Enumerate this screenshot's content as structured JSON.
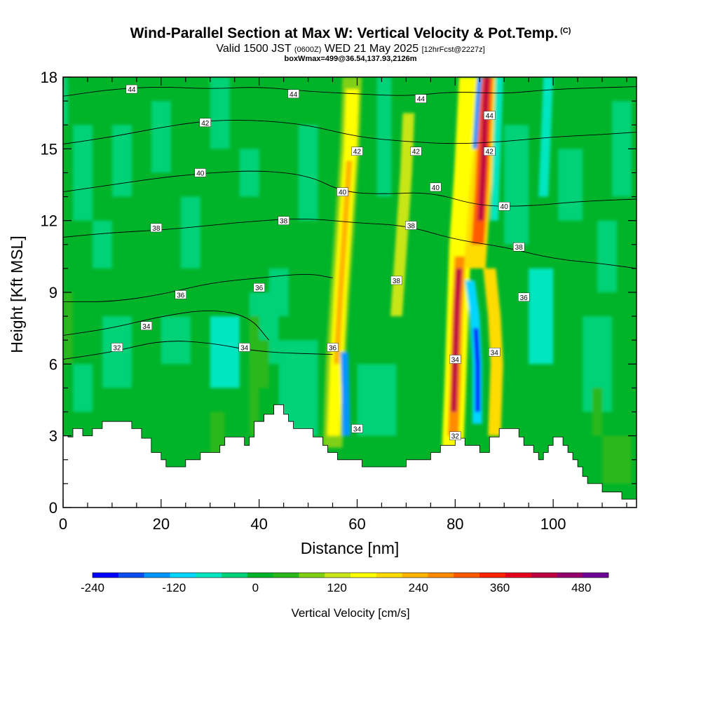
{
  "header": {
    "title": "Wind-Parallel Section at Max W: Vertical Velocity & Pot.Temp.",
    "copyright": "(C)",
    "valid_prefix": "Valid 1500 JST",
    "valid_utc": "(0600Z)",
    "valid_date": "WED 21 May 2025",
    "forecast": "[12hrFcst@2227z]",
    "box_info": "boxWmax=499@36.54,137.93,2126m"
  },
  "chart_data": {
    "type": "heatmap",
    "xlabel": "Distance [nm]",
    "ylabel": "Height [Kft MSL]",
    "xlim": [
      0,
      117
    ],
    "ylim": [
      0,
      18
    ],
    "x_ticks": [
      0,
      20,
      40,
      60,
      80,
      100
    ],
    "y_ticks": [
      0,
      3,
      6,
      9,
      12,
      15,
      18
    ],
    "colorbar": {
      "label": "Vertical Velocity [cm/s]",
      "ticks": [
        -240,
        -120,
        0,
        120,
        240,
        360,
        480
      ],
      "bins": [
        -240,
        -200,
        -160,
        -120,
        -80,
        -40,
        0,
        40,
        80,
        120,
        160,
        200,
        240,
        280,
        320,
        360,
        400,
        440,
        480,
        520
      ],
      "colors": [
        "#0000ff",
        "#0a4ef2",
        "#0096ff",
        "#00d6ff",
        "#00e6c0",
        "#00d277",
        "#00b42a",
        "#2ab81c",
        "#7fd014",
        "#c8e619",
        "#ffff00",
        "#ffdc00",
        "#ffb400",
        "#ff8c00",
        "#ff5a00",
        "#ff2300",
        "#e6001e",
        "#be0041",
        "#96006e",
        "#6e0096"
      ]
    },
    "terrain": [
      [
        0,
        3
      ],
      [
        1,
        3
      ],
      [
        1,
        2.95
      ],
      [
        2,
        2.95
      ],
      [
        2,
        3.3
      ],
      [
        4,
        3.3
      ],
      [
        4,
        3
      ],
      [
        6,
        3
      ],
      [
        6,
        3.3
      ],
      [
        8,
        3.3
      ],
      [
        8,
        3.6
      ],
      [
        11,
        3.6
      ],
      [
        11,
        3.6
      ],
      [
        14,
        3.6
      ],
      [
        14,
        3.3
      ],
      [
        16,
        3.3
      ],
      [
        16,
        2.9
      ],
      [
        18,
        2.9
      ],
      [
        18,
        2.3
      ],
      [
        20,
        2.3
      ],
      [
        20,
        2
      ],
      [
        21,
        2
      ],
      [
        21,
        1.7
      ],
      [
        25,
        1.7
      ],
      [
        25,
        2
      ],
      [
        28,
        2
      ],
      [
        28,
        2.3
      ],
      [
        32,
        2.3
      ],
      [
        32,
        2.6
      ],
      [
        33,
        2.6
      ],
      [
        33,
        2.95
      ],
      [
        37,
        2.95
      ],
      [
        37,
        2.6
      ],
      [
        38,
        2.6
      ],
      [
        38,
        2.95
      ],
      [
        39,
        2.95
      ],
      [
        39,
        3.6
      ],
      [
        41,
        3.6
      ],
      [
        41,
        3.9
      ],
      [
        43,
        3.9
      ],
      [
        43,
        4.3
      ],
      [
        45,
        4.3
      ],
      [
        45,
        3.9
      ],
      [
        46,
        3.9
      ],
      [
        46,
        3.6
      ],
      [
        47,
        3.6
      ],
      [
        47,
        3.3
      ],
      [
        51,
        3.3
      ],
      [
        51,
        2.95
      ],
      [
        53,
        2.95
      ],
      [
        53,
        2.6
      ],
      [
        54,
        2.6
      ],
      [
        54,
        2.3
      ],
      [
        56,
        2.3
      ],
      [
        56,
        2
      ],
      [
        61,
        2
      ],
      [
        61,
        1.7
      ],
      [
        70,
        1.7
      ],
      [
        70,
        2
      ],
      [
        75,
        2
      ],
      [
        75,
        2.3
      ],
      [
        77,
        2.3
      ],
      [
        77,
        2.6
      ],
      [
        80,
        2.6
      ],
      [
        80,
        2.9
      ],
      [
        82,
        2.9
      ],
      [
        82,
        2.6
      ],
      [
        85,
        2.6
      ],
      [
        85,
        2.3
      ],
      [
        87,
        2.3
      ],
      [
        87,
        2.95
      ],
      [
        89,
        2.95
      ],
      [
        89,
        3.3
      ],
      [
        93,
        3.3
      ],
      [
        93,
        2.95
      ],
      [
        94,
        2.95
      ],
      [
        94,
        2.6
      ],
      [
        96,
        2.6
      ],
      [
        96,
        2.3
      ],
      [
        97,
        2.3
      ],
      [
        97,
        2
      ],
      [
        98,
        2
      ],
      [
        98,
        2.3
      ],
      [
        99,
        2.3
      ],
      [
        99,
        2.6
      ],
      [
        100,
        2.6
      ],
      [
        100,
        2.95
      ],
      [
        102,
        2.95
      ],
      [
        102,
        2.6
      ],
      [
        103,
        2.6
      ],
      [
        103,
        2.3
      ],
      [
        104,
        2.3
      ],
      [
        104,
        2
      ],
      [
        105,
        2
      ],
      [
        105,
        1.7
      ],
      [
        106,
        1.7
      ],
      [
        106,
        1.3
      ],
      [
        107,
        1.3
      ],
      [
        107,
        1
      ],
      [
        110,
        1
      ],
      [
        110,
        0.65
      ],
      [
        114,
        0.65
      ],
      [
        114,
        0.35
      ],
      [
        117,
        0.35
      ]
    ],
    "theta_contours": [
      {
        "label": "32",
        "points": [
          [
            0,
            6.2
          ],
          [
            10,
            6.5
          ],
          [
            20,
            7.0
          ],
          [
            30,
            6.9
          ],
          [
            40,
            6.5
          ],
          [
            55,
            6.4
          ]
        ]
      },
      {
        "label": "34",
        "points": [
          [
            0,
            7.2
          ],
          [
            10,
            7.5
          ],
          [
            20,
            8.0
          ],
          [
            30,
            8.3
          ],
          [
            38,
            8.0
          ],
          [
            42,
            7.0
          ]
        ]
      },
      {
        "label": "36",
        "points": [
          [
            0,
            8.6
          ],
          [
            10,
            8.6
          ],
          [
            20,
            8.9
          ],
          [
            30,
            9.4
          ],
          [
            40,
            9.6
          ],
          [
            50,
            9.8
          ],
          [
            55,
            9.6
          ]
        ]
      },
      {
        "label": "38",
        "points": [
          [
            0,
            11.3
          ],
          [
            10,
            11.5
          ],
          [
            20,
            11.6
          ],
          [
            30,
            11.8
          ],
          [
            40,
            12.0
          ],
          [
            50,
            12.1
          ],
          [
            60,
            11.9
          ],
          [
            70,
            11.8
          ],
          [
            80,
            11.2
          ],
          [
            90,
            10.9
          ],
          [
            100,
            10.4
          ],
          [
            110,
            10.2
          ],
          [
            117,
            10.0
          ]
        ]
      },
      {
        "label": "40",
        "points": [
          [
            0,
            13.2
          ],
          [
            10,
            13.5
          ],
          [
            20,
            13.8
          ],
          [
            30,
            14.0
          ],
          [
            40,
            14.1
          ],
          [
            50,
            13.9
          ],
          [
            57,
            13.2
          ],
          [
            65,
            13.1
          ],
          [
            75,
            13.2
          ],
          [
            85,
            12.6
          ],
          [
            95,
            12.6
          ],
          [
            105,
            12.8
          ],
          [
            117,
            12.9
          ]
        ]
      },
      {
        "label": "42",
        "points": [
          [
            0,
            15.2
          ],
          [
            10,
            15.5
          ],
          [
            20,
            15.9
          ],
          [
            30,
            16.2
          ],
          [
            40,
            16.2
          ],
          [
            50,
            16.0
          ],
          [
            60,
            15.5
          ],
          [
            70,
            15.3
          ],
          [
            80,
            15.2
          ],
          [
            90,
            15.3
          ],
          [
            100,
            15.5
          ],
          [
            110,
            15.6
          ],
          [
            117,
            15.7
          ]
        ]
      },
      {
        "label": "44",
        "points": [
          [
            0,
            17.2
          ],
          [
            10,
            17.5
          ],
          [
            20,
            17.6
          ],
          [
            30,
            17.5
          ],
          [
            40,
            17.6
          ],
          [
            50,
            17.4
          ],
          [
            60,
            17.3
          ],
          [
            70,
            17.2
          ],
          [
            80,
            17.4
          ],
          [
            90,
            17.3
          ],
          [
            100,
            17.5
          ],
          [
            117,
            17.6
          ]
        ]
      }
    ],
    "theta_labels": [
      {
        "text": "44",
        "x": 14,
        "y": 17.5
      },
      {
        "text": "44",
        "x": 47,
        "y": 17.3
      },
      {
        "text": "44",
        "x": 73,
        "y": 17.1
      },
      {
        "text": "44",
        "x": 87,
        "y": 16.4
      },
      {
        "text": "42",
        "x": 29,
        "y": 16.1
      },
      {
        "text": "42",
        "x": 60,
        "y": 14.9
      },
      {
        "text": "42",
        "x": 72,
        "y": 14.9
      },
      {
        "text": "42",
        "x": 87,
        "y": 14.9
      },
      {
        "text": "40",
        "x": 28,
        "y": 14.0
      },
      {
        "text": "40",
        "x": 57,
        "y": 13.2
      },
      {
        "text": "40",
        "x": 76,
        "y": 13.4
      },
      {
        "text": "40",
        "x": 90,
        "y": 12.6
      },
      {
        "text": "38",
        "x": 19,
        "y": 11.7
      },
      {
        "text": "38",
        "x": 45,
        "y": 12.0
      },
      {
        "text": "38",
        "x": 71,
        "y": 11.8
      },
      {
        "text": "38",
        "x": 93,
        "y": 10.9
      },
      {
        "text": "38",
        "x": 68,
        "y": 9.5
      },
      {
        "text": "36",
        "x": 24,
        "y": 8.9
      },
      {
        "text": "36",
        "x": 40,
        "y": 9.2
      },
      {
        "text": "36",
        "x": 94,
        "y": 8.8
      },
      {
        "text": "36",
        "x": 55,
        "y": 6.7
      },
      {
        "text": "34",
        "x": 17,
        "y": 7.6
      },
      {
        "text": "34",
        "x": 37,
        "y": 6.7
      },
      {
        "text": "34",
        "x": 80,
        "y": 6.2
      },
      {
        "text": "34",
        "x": 88,
        "y": 6.5
      },
      {
        "text": "34",
        "x": 60,
        "y": 3.3
      },
      {
        "text": "32",
        "x": 11,
        "y": 6.7
      },
      {
        "text": "32",
        "x": 80,
        "y": 3.0
      }
    ],
    "max_updraft_cm_s": 499
  }
}
